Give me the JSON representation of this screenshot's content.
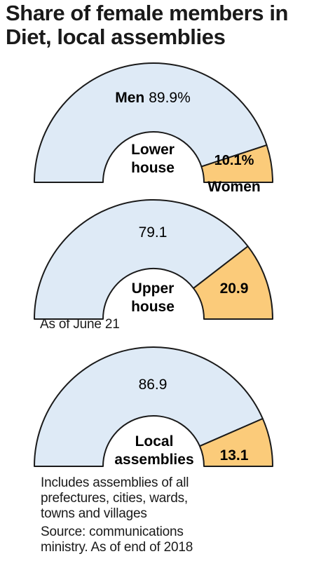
{
  "title_lines": [
    "Share of female members in",
    "Diet, local assemblies"
  ],
  "colors": {
    "men": "#deeaf6",
    "women": "#fbcb7a",
    "stroke": "#1a1a1a"
  },
  "chart_data": [
    {
      "type": "pie",
      "center_label": [
        "Lower",
        "house"
      ],
      "series": [
        {
          "name": "Men",
          "value": 89.9,
          "label": "89.9%"
        },
        {
          "name": "Women",
          "value": 10.1,
          "label": "10.1%"
        }
      ]
    },
    {
      "type": "pie",
      "center_label": [
        "Upper",
        "house"
      ],
      "series": [
        {
          "value": 79.1,
          "label": "79.1"
        },
        {
          "value": 20.9,
          "label": "20.9"
        }
      ],
      "note": "As of June 21"
    },
    {
      "type": "pie",
      "center_label": [
        "Local",
        "assemblies"
      ],
      "series": [
        {
          "value": 86.9,
          "label": "86.9"
        },
        {
          "value": 13.1,
          "label": "13.1"
        }
      ]
    }
  ],
  "footnote_lines": [
    "Includes assemblies of all",
    "prefectures, cities, wards,",
    "towns and villages"
  ],
  "source_lines": [
    "Source: communications",
    "ministry. As of end of 2018"
  ]
}
